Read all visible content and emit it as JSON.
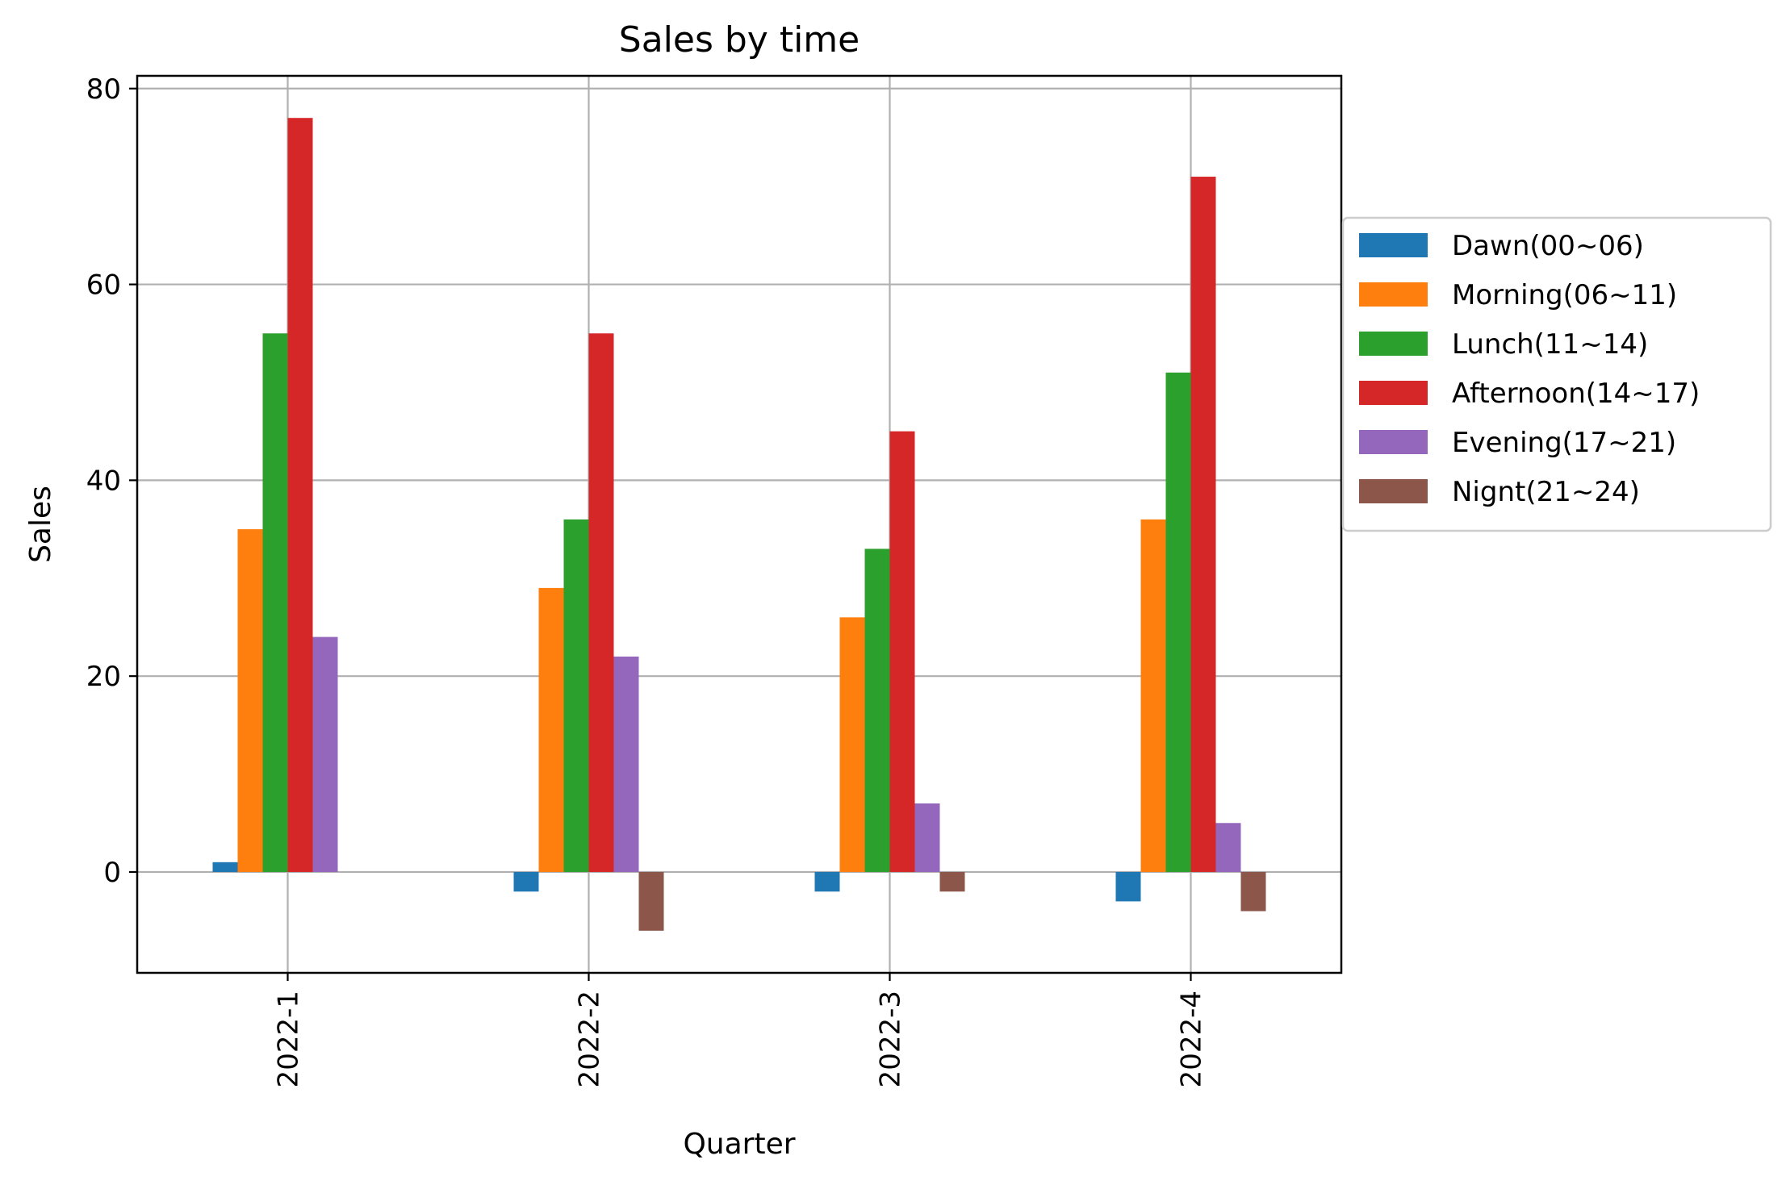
{
  "chart_data": {
    "type": "bar",
    "title": "Sales by time",
    "xlabel": "Quarter",
    "ylabel": "Sales",
    "categories": [
      "2022-1",
      "2022-2",
      "2022-3",
      "2022-4"
    ],
    "ylim": [
      -10.3,
      81.3
    ],
    "yticks": [
      0,
      20,
      40,
      60,
      80
    ],
    "grid": true,
    "legend_position": "right, outside plot",
    "series": [
      {
        "name": "Dawn(00~06)",
        "color": "#1f77b4",
        "values": [
          1,
          -2,
          -2,
          -3
        ]
      },
      {
        "name": "Morning(06~11)",
        "color": "#ff7f0e",
        "values": [
          35,
          29,
          26,
          36
        ]
      },
      {
        "name": "Lunch(11~14)",
        "color": "#2ca02c",
        "values": [
          55,
          36,
          33,
          51
        ]
      },
      {
        "name": "Afternoon(14~17)",
        "color": "#d62728",
        "values": [
          77,
          55,
          45,
          71
        ]
      },
      {
        "name": "Evening(17~21)",
        "color": "#9467bd",
        "values": [
          24,
          22,
          7,
          5
        ]
      },
      {
        "name": "Nignt(21~24)",
        "color": "#8c564b",
        "values": [
          0,
          -6,
          -2,
          -4
        ]
      }
    ]
  }
}
